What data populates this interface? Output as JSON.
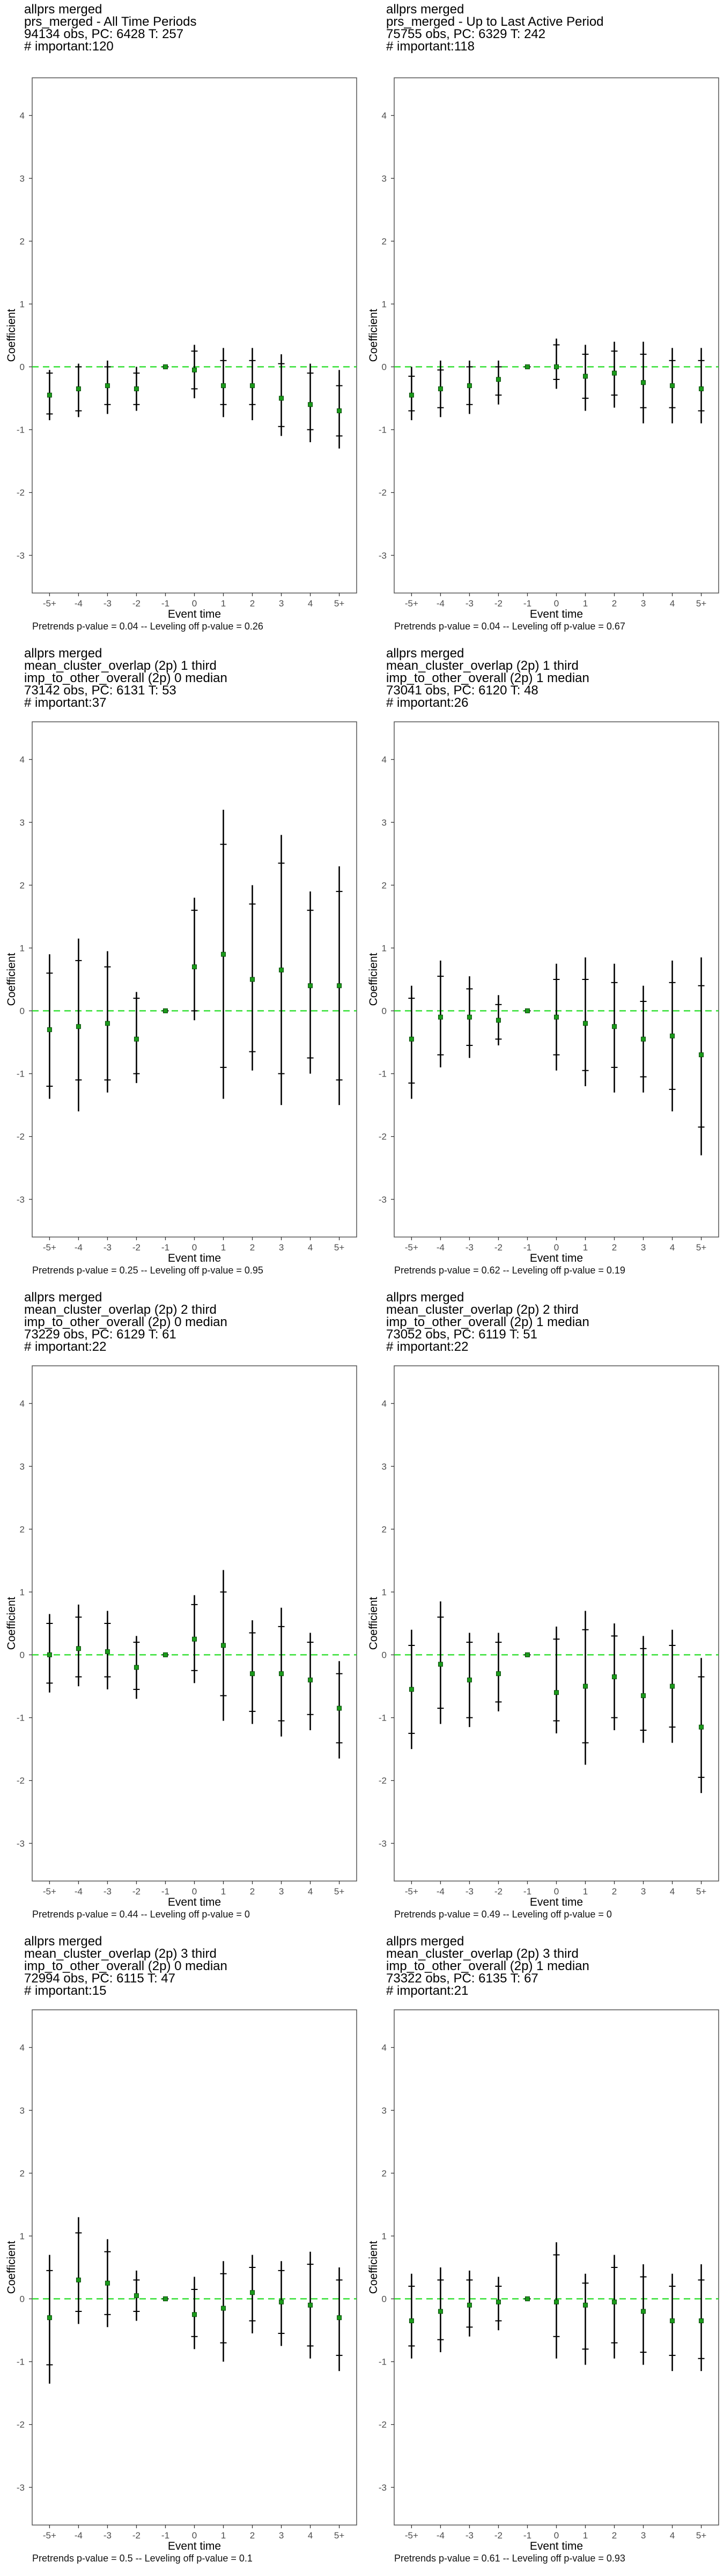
{
  "chart_data": [
    {
      "type": "errorbar",
      "title_lines": [
        "allprs merged",
        "prs_merged - All Time Periods",
        "94134 obs, PC: 6428 T: 257",
        "# important:120"
      ],
      "xlabel": "Event time",
      "ylabel": "Coefficient",
      "categories": [
        "-5+",
        "-4",
        "-3",
        "-2",
        "-1",
        "0",
        "1",
        "2",
        "3",
        "4",
        "5+"
      ],
      "ylim": [
        -3.6,
        4.6
      ],
      "yticks": [
        -3,
        -2,
        -1,
        0,
        1,
        2,
        3,
        4
      ],
      "hline": 0,
      "estimates": [
        -0.45,
        -0.35,
        -0.3,
        -0.35,
        0,
        -0.05,
        -0.3,
        -0.3,
        -0.5,
        -0.6,
        -0.7
      ],
      "ci_outer": [
        [
          -0.85,
          -0.05
        ],
        [
          -0.8,
          0.05
        ],
        [
          -0.75,
          0.1
        ],
        [
          -0.7,
          0.0
        ],
        [
          0,
          0
        ],
        [
          -0.5,
          0.35
        ],
        [
          -0.8,
          0.3
        ],
        [
          -0.85,
          0.3
        ],
        [
          -1.1,
          0.2
        ],
        [
          -1.2,
          0.05
        ],
        [
          -1.3,
          -0.05
        ]
      ],
      "ci_inner": [
        [
          -0.75,
          -0.1
        ],
        [
          -0.7,
          0.0
        ],
        [
          -0.6,
          0.0
        ],
        [
          -0.6,
          -0.1
        ],
        [
          0,
          0
        ],
        [
          -0.35,
          0.25
        ],
        [
          -0.6,
          0.1
        ],
        [
          -0.6,
          0.1
        ],
        [
          -0.95,
          0.05
        ],
        [
          -1.0,
          -0.1
        ],
        [
          -1.1,
          -0.3
        ]
      ],
      "footnote": "Pretrends p-value = 0.04 -- Leveling off p-value = 0.26"
    },
    {
      "type": "errorbar",
      "title_lines": [
        "allprs merged",
        "prs_merged - Up to Last Active Period",
        "75755 obs, PC: 6329 T: 242",
        "# important:118"
      ],
      "xlabel": "Event time",
      "ylabel": "Coefficient",
      "categories": [
        "-5+",
        "-4",
        "-3",
        "-2",
        "-1",
        "0",
        "1",
        "2",
        "3",
        "4",
        "5+"
      ],
      "ylim": [
        -3.6,
        4.6
      ],
      "yticks": [
        -3,
        -2,
        -1,
        0,
        1,
        2,
        3,
        4
      ],
      "hline": 0,
      "estimates": [
        -0.45,
        -0.35,
        -0.3,
        -0.2,
        0,
        0.0,
        -0.15,
        -0.1,
        -0.25,
        -0.3,
        -0.35
      ],
      "ci_outer": [
        [
          -0.85,
          0.0
        ],
        [
          -0.8,
          0.1
        ],
        [
          -0.75,
          0.1
        ],
        [
          -0.6,
          0.1
        ],
        [
          0,
          0
        ],
        [
          -0.35,
          0.45
        ],
        [
          -0.7,
          0.35
        ],
        [
          -0.65,
          0.4
        ],
        [
          -0.9,
          0.4
        ],
        [
          -0.9,
          0.3
        ],
        [
          -0.9,
          0.3
        ]
      ],
      "ci_inner": [
        [
          -0.7,
          -0.15
        ],
        [
          -0.65,
          -0.05
        ],
        [
          -0.6,
          0.0
        ],
        [
          -0.45,
          0.0
        ],
        [
          0,
          0
        ],
        [
          -0.2,
          0.35
        ],
        [
          -0.5,
          0.2
        ],
        [
          -0.45,
          0.25
        ],
        [
          -0.65,
          0.2
        ],
        [
          -0.65,
          0.1
        ],
        [
          -0.7,
          0.1
        ]
      ],
      "footnote": "Pretrends p-value = 0.04 -- Leveling off p-value = 0.67"
    },
    {
      "type": "errorbar",
      "title_lines": [
        "allprs merged",
        "mean_cluster_overlap (2p) 1 third",
        "imp_to_other_overall (2p) 0 median",
        "73142 obs, PC: 6131 T: 53",
        "# important:37"
      ],
      "xlabel": "Event time",
      "ylabel": "Coefficient",
      "categories": [
        "-5+",
        "-4",
        "-3",
        "-2",
        "-1",
        "0",
        "1",
        "2",
        "3",
        "4",
        "5+"
      ],
      "ylim": [
        -3.6,
        4.6
      ],
      "yticks": [
        -3,
        -2,
        -1,
        0,
        1,
        2,
        3,
        4
      ],
      "hline": 0,
      "estimates": [
        -0.3,
        -0.25,
        -0.2,
        -0.45,
        0,
        0.7,
        0.9,
        0.5,
        0.65,
        0.4,
        0.4
      ],
      "ci_outer": [
        [
          -1.4,
          0.9
        ],
        [
          -1.6,
          1.15
        ],
        [
          -1.3,
          0.95
        ],
        [
          -1.15,
          0.3
        ],
        [
          0,
          0
        ],
        [
          -0.15,
          1.8
        ],
        [
          -1.4,
          3.2
        ],
        [
          -0.95,
          2.0
        ],
        [
          -1.5,
          2.8
        ],
        [
          -1.0,
          1.9
        ],
        [
          -1.5,
          2.3
        ]
      ],
      "ci_inner": [
        [
          -1.2,
          0.6
        ],
        [
          -1.1,
          0.8
        ],
        [
          -1.1,
          0.7
        ],
        [
          -1.0,
          0.2
        ],
        [
          0,
          0
        ],
        [
          0.0,
          1.6
        ],
        [
          -0.9,
          2.65
        ],
        [
          -0.65,
          1.7
        ],
        [
          -1.0,
          2.35
        ],
        [
          -0.75,
          1.6
        ],
        [
          -1.1,
          1.9
        ]
      ],
      "footnote": "Pretrends p-value = 0.25 -- Leveling off p-value = 0.95"
    },
    {
      "type": "errorbar",
      "title_lines": [
        "allprs merged",
        "mean_cluster_overlap (2p) 1 third",
        "imp_to_other_overall (2p) 1 median",
        "73041 obs, PC: 6120 T: 48",
        "# important:26"
      ],
      "xlabel": "Event time",
      "ylabel": "Coefficient",
      "categories": [
        "-5+",
        "-4",
        "-3",
        "-2",
        "-1",
        "0",
        "1",
        "2",
        "3",
        "4",
        "5+"
      ],
      "ylim": [
        -3.6,
        4.6
      ],
      "yticks": [
        -3,
        -2,
        -1,
        0,
        1,
        2,
        3,
        4
      ],
      "hline": 0,
      "estimates": [
        -0.45,
        -0.1,
        -0.1,
        -0.15,
        0,
        -0.1,
        -0.2,
        -0.25,
        -0.45,
        -0.4,
        -0.7
      ],
      "ci_outer": [
        [
          -1.4,
          0.4
        ],
        [
          -0.9,
          0.8
        ],
        [
          -0.75,
          0.55
        ],
        [
          -0.55,
          0.25
        ],
        [
          0,
          0
        ],
        [
          -0.95,
          0.75
        ],
        [
          -1.2,
          0.85
        ],
        [
          -1.3,
          0.75
        ],
        [
          -1.3,
          0.4
        ],
        [
          -1.6,
          0.8
        ],
        [
          -2.3,
          0.85
        ]
      ],
      "ci_inner": [
        [
          -1.15,
          0.2
        ],
        [
          -0.7,
          0.55
        ],
        [
          -0.55,
          0.35
        ],
        [
          -0.45,
          0.1
        ],
        [
          0,
          0
        ],
        [
          -0.7,
          0.5
        ],
        [
          -0.95,
          0.5
        ],
        [
          -0.9,
          0.45
        ],
        [
          -1.05,
          0.15
        ],
        [
          -1.25,
          0.45
        ],
        [
          -1.85,
          0.4
        ]
      ],
      "footnote": "Pretrends p-value = 0.62 -- Leveling off p-value = 0.19"
    },
    {
      "type": "errorbar",
      "title_lines": [
        "allprs merged",
        "mean_cluster_overlap (2p) 2 third",
        "imp_to_other_overall (2p) 0 median",
        "73229 obs, PC: 6129 T: 61",
        "# important:22"
      ],
      "xlabel": "Event time",
      "ylabel": "Coefficient",
      "categories": [
        "-5+",
        "-4",
        "-3",
        "-2",
        "-1",
        "0",
        "1",
        "2",
        "3",
        "4",
        "5+"
      ],
      "ylim": [
        -3.6,
        4.6
      ],
      "yticks": [
        -3,
        -2,
        -1,
        0,
        1,
        2,
        3,
        4
      ],
      "hline": 0,
      "estimates": [
        0.0,
        0.1,
        0.05,
        -0.2,
        0,
        0.25,
        0.15,
        -0.3,
        -0.3,
        -0.4,
        -0.85
      ],
      "ci_outer": [
        [
          -0.6,
          0.65
        ],
        [
          -0.5,
          0.8
        ],
        [
          -0.55,
          0.7
        ],
        [
          -0.7,
          0.3
        ],
        [
          0,
          0
        ],
        [
          -0.45,
          0.95
        ],
        [
          -1.05,
          1.35
        ],
        [
          -1.1,
          0.55
        ],
        [
          -1.3,
          0.75
        ],
        [
          -1.2,
          0.35
        ],
        [
          -1.65,
          -0.1
        ]
      ],
      "ci_inner": [
        [
          -0.45,
          0.5
        ],
        [
          -0.35,
          0.6
        ],
        [
          -0.35,
          0.5
        ],
        [
          -0.55,
          0.2
        ],
        [
          0,
          0
        ],
        [
          -0.25,
          0.8
        ],
        [
          -0.65,
          1.0
        ],
        [
          -0.9,
          0.35
        ],
        [
          -1.05,
          0.45
        ],
        [
          -0.95,
          0.2
        ],
        [
          -1.4,
          -0.3
        ]
      ],
      "footnote": "Pretrends p-value = 0.44 -- Leveling off p-value = 0"
    },
    {
      "type": "errorbar",
      "title_lines": [
        "allprs merged",
        "mean_cluster_overlap (2p) 2 third",
        "imp_to_other_overall (2p) 1 median",
        "73052 obs, PC: 6119 T: 51",
        "# important:22"
      ],
      "xlabel": "Event time",
      "ylabel": "Coefficient",
      "categories": [
        "-5+",
        "-4",
        "-3",
        "-2",
        "-1",
        "0",
        "1",
        "2",
        "3",
        "4",
        "5+"
      ],
      "ylim": [
        -3.6,
        4.6
      ],
      "yticks": [
        -3,
        -2,
        -1,
        0,
        1,
        2,
        3,
        4
      ],
      "hline": 0,
      "estimates": [
        -0.55,
        -0.15,
        -0.4,
        -0.3,
        0,
        -0.6,
        -0.5,
        -0.35,
        -0.65,
        -0.5,
        -1.15
      ],
      "ci_outer": [
        [
          -1.5,
          0.4
        ],
        [
          -1.1,
          0.85
        ],
        [
          -1.15,
          0.35
        ],
        [
          -0.9,
          0.35
        ],
        [
          0,
          0
        ],
        [
          -1.25,
          0.45
        ],
        [
          -1.75,
          0.7
        ],
        [
          -1.2,
          0.5
        ],
        [
          -1.4,
          0.3
        ],
        [
          -1.4,
          0.4
        ],
        [
          -2.2,
          -0.05
        ]
      ],
      "ci_inner": [
        [
          -1.25,
          0.15
        ],
        [
          -0.85,
          0.6
        ],
        [
          -1.0,
          0.2
        ],
        [
          -0.75,
          0.2
        ],
        [
          0,
          0
        ],
        [
          -1.05,
          0.25
        ],
        [
          -1.4,
          0.4
        ],
        [
          -1.0,
          0.3
        ],
        [
          -1.2,
          0.1
        ],
        [
          -1.15,
          0.15
        ],
        [
          -1.95,
          -0.35
        ]
      ],
      "footnote": "Pretrends p-value = 0.49 -- Leveling off p-value = 0"
    },
    {
      "type": "errorbar",
      "title_lines": [
        "allprs merged",
        "mean_cluster_overlap (2p) 3 third",
        "imp_to_other_overall (2p) 0 median",
        "72994 obs, PC: 6115 T: 47",
        "# important:15"
      ],
      "xlabel": "Event time",
      "ylabel": "Coefficient",
      "categories": [
        "-5+",
        "-4",
        "-3",
        "-2",
        "-1",
        "0",
        "1",
        "2",
        "3",
        "4",
        "5+"
      ],
      "ylim": [
        -3.6,
        4.6
      ],
      "yticks": [
        -3,
        -2,
        -1,
        0,
        1,
        2,
        3,
        4
      ],
      "hline": 0,
      "estimates": [
        -0.3,
        0.3,
        0.25,
        0.05,
        0,
        -0.25,
        -0.15,
        0.1,
        -0.05,
        -0.1,
        -0.3
      ],
      "ci_outer": [
        [
          -1.35,
          0.7
        ],
        [
          -0.4,
          1.3
        ],
        [
          -0.45,
          0.95
        ],
        [
          -0.35,
          0.45
        ],
        [
          0,
          0
        ],
        [
          -0.8,
          0.35
        ],
        [
          -1.0,
          0.6
        ],
        [
          -0.55,
          0.7
        ],
        [
          -0.75,
          0.6
        ],
        [
          -0.95,
          0.75
        ],
        [
          -1.15,
          0.5
        ]
      ],
      "ci_inner": [
        [
          -1.05,
          0.45
        ],
        [
          -0.2,
          1.05
        ],
        [
          -0.25,
          0.75
        ],
        [
          -0.2,
          0.3
        ],
        [
          0,
          0
        ],
        [
          -0.6,
          0.15
        ],
        [
          -0.7,
          0.4
        ],
        [
          -0.35,
          0.5
        ],
        [
          -0.55,
          0.45
        ],
        [
          -0.75,
          0.55
        ],
        [
          -0.9,
          0.3
        ]
      ],
      "footnote": "Pretrends p-value = 0.5 -- Leveling off p-value = 0.1"
    },
    {
      "type": "errorbar",
      "title_lines": [
        "allprs merged",
        "mean_cluster_overlap (2p) 3 third",
        "imp_to_other_overall (2p) 1 median",
        "73322 obs, PC: 6135 T: 67",
        "# important:21"
      ],
      "xlabel": "Event time",
      "ylabel": "Coefficient",
      "categories": [
        "-5+",
        "-4",
        "-3",
        "-2",
        "-1",
        "0",
        "1",
        "2",
        "3",
        "4",
        "5+"
      ],
      "ylim": [
        -3.6,
        4.6
      ],
      "yticks": [
        -3,
        -2,
        -1,
        0,
        1,
        2,
        3,
        4
      ],
      "hline": 0,
      "estimates": [
        -0.35,
        -0.2,
        -0.1,
        -0.05,
        0,
        -0.05,
        -0.1,
        -0.05,
        -0.2,
        -0.35,
        -0.35
      ],
      "ci_outer": [
        [
          -0.95,
          0.4
        ],
        [
          -0.85,
          0.5
        ],
        [
          -0.6,
          0.45
        ],
        [
          -0.5,
          0.35
        ],
        [
          0,
          0
        ],
        [
          -0.95,
          0.9
        ],
        [
          -1.05,
          0.4
        ],
        [
          -0.95,
          0.7
        ],
        [
          -1.05,
          0.55
        ],
        [
          -1.15,
          0.4
        ],
        [
          -1.15,
          0.55
        ]
      ],
      "ci_inner": [
        [
          -0.75,
          0.2
        ],
        [
          -0.65,
          0.3
        ],
        [
          -0.45,
          0.3
        ],
        [
          -0.35,
          0.2
        ],
        [
          0,
          0
        ],
        [
          -0.6,
          0.7
        ],
        [
          -0.8,
          0.25
        ],
        [
          -0.7,
          0.5
        ],
        [
          -0.85,
          0.35
        ],
        [
          -0.9,
          0.2
        ],
        [
          -0.95,
          0.3
        ]
      ],
      "footnote": "Pretrends p-value = 0.61 -- Leveling off p-value = 0.93"
    }
  ]
}
